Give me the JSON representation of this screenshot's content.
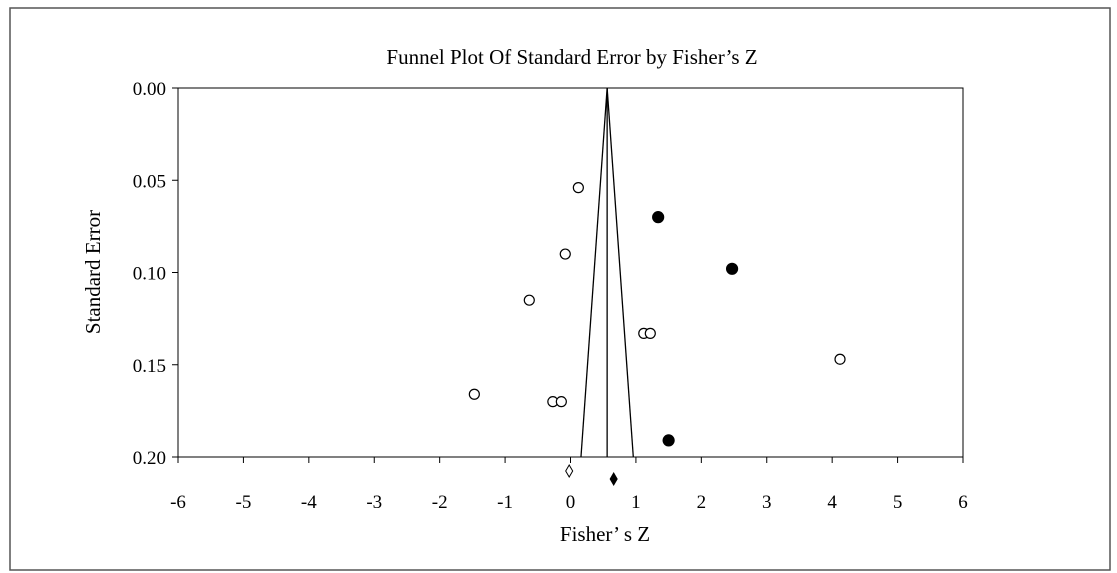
{
  "chart_data": {
    "type": "scatter",
    "title": "Funnel Plot Of Standard Error by Fisher’s Z",
    "xlabel": "Fisher’ s Z",
    "ylabel": "Standard Error",
    "xlim": [
      -6,
      6
    ],
    "ylim": [
      0.0,
      0.2
    ],
    "y_inverted": true,
    "x_ticks": [
      "-6",
      "-5",
      "-4",
      "-3",
      "-2",
      "-1",
      "0",
      "1",
      "2",
      "3",
      "4",
      "5",
      "6"
    ],
    "y_ticks": [
      "0.00",
      "0.05",
      "0.10",
      "0.15",
      "0.20"
    ],
    "grid": false,
    "pooled_estimate": 0.56,
    "funnel_base": [
      0.16,
      0.96
    ],
    "series": [
      {
        "marker": "open-circle",
        "points": [
          {
            "x": 0.12,
            "y": 0.054
          },
          {
            "x": -0.08,
            "y": 0.09
          },
          {
            "x": -0.63,
            "y": 0.115
          },
          {
            "x": 1.12,
            "y": 0.133
          },
          {
            "x": 1.22,
            "y": 0.133
          },
          {
            "x": 4.12,
            "y": 0.147
          },
          {
            "x": -1.47,
            "y": 0.166
          },
          {
            "x": -0.27,
            "y": 0.17
          },
          {
            "x": -0.14,
            "y": 0.17
          }
        ]
      },
      {
        "marker": "filled-circle",
        "points": [
          {
            "x": 1.34,
            "y": 0.07
          },
          {
            "x": 2.47,
            "y": 0.098
          },
          {
            "x": 1.5,
            "y": 0.191
          }
        ]
      }
    ],
    "summary_diamonds": [
      {
        "marker": "open-diamond",
        "x": -0.02
      },
      {
        "marker": "filled-diamond",
        "x": 0.66
      }
    ]
  }
}
